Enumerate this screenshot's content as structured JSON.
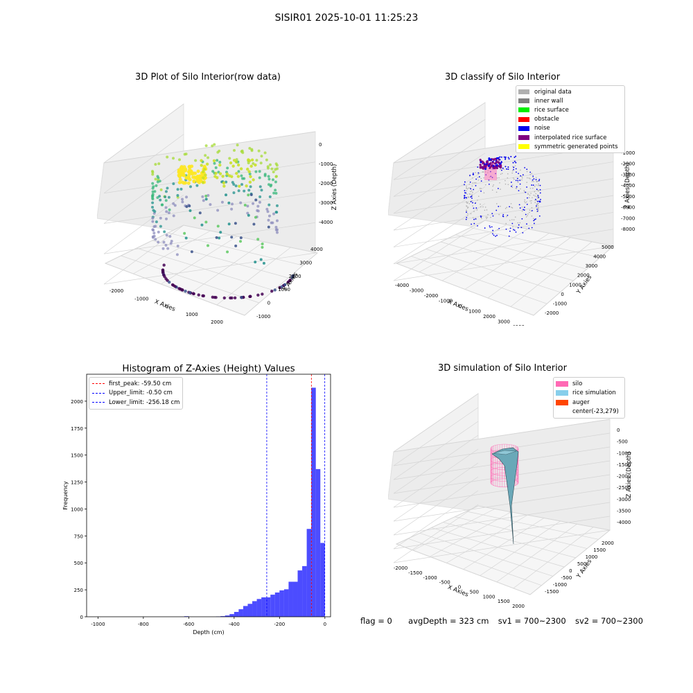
{
  "suptitle": "SISIR01 2025-10-01 11:25:23",
  "panels": {
    "raw": {
      "title": "3D Plot of Silo Interior(row data)",
      "xlabel": "X Axies",
      "ylabel": "Y Axies",
      "zlabel": "Z Axies (Depth)",
      "xticks": [
        "-2000",
        "-1000",
        "0",
        "1000",
        "2000"
      ],
      "yticks": [
        "-1000",
        "0",
        "1000",
        "2000",
        "3000",
        "4000"
      ],
      "zticks": [
        "0",
        "-1000",
        "-2000",
        "-3000",
        "-4000"
      ]
    },
    "classify": {
      "title": "3D classify of Silo Interior",
      "xlabel": "X Axies",
      "ylabel": "Y Axies",
      "zlabel": "Z Axies (Depth)",
      "xticks": [
        "-4000",
        "-3000",
        "-2000",
        "-1000",
        "0",
        "1000",
        "2000",
        "3000",
        "4000"
      ],
      "yticks": [
        "-2000",
        "-1000",
        "0",
        "1000",
        "2000",
        "3000",
        "4000",
        "5000"
      ],
      "zticks": [
        "-1000",
        "-2000",
        "-3000",
        "-4000",
        "-5000",
        "-6000",
        "-7000",
        "-8000"
      ],
      "legend": [
        {
          "label": "original data",
          "color": "#b0b0b0"
        },
        {
          "label": "inner wall",
          "color": "#808080"
        },
        {
          "label": "rice surface",
          "color": "#00ee00"
        },
        {
          "label": "obstacle",
          "color": "#ff0000"
        },
        {
          "label": "noise",
          "color": "#0000ee"
        },
        {
          "label": "interpolated rice surface",
          "color": "#800080"
        },
        {
          "label": "symmetric generated points",
          "color": "#ffff00"
        }
      ]
    },
    "simulation": {
      "title": "3D simulation of Silo Interior",
      "xlabel": "X Axies",
      "ylabel": "Y Axies",
      "zlabel": "Z Axies (Depth)",
      "xticks": [
        "-2000",
        "-1500",
        "-1000",
        "-500",
        "0",
        "500",
        "1000",
        "1500",
        "2000"
      ],
      "yticks": [
        "-1500",
        "-1000",
        "-500",
        "0",
        "500",
        "1000",
        "1500",
        "2000"
      ],
      "zticks": [
        "0",
        "-500",
        "-1000",
        "-1500",
        "-2000",
        "-2500",
        "-3000",
        "-3500",
        "-4000"
      ],
      "legend": [
        {
          "label": "silo",
          "color": "#ff69b4"
        },
        {
          "label": "rice simulation",
          "color": "#87ceeb"
        },
        {
          "label": "auger",
          "color": "#ff4500"
        },
        {
          "label": "center(-23,279)",
          "color": ""
        }
      ]
    }
  },
  "status": {
    "flag": "flag = 0",
    "avg_depth": "avgDepth = 323 cm",
    "sv1": "sv1 = 700~2300",
    "sv2": "sv2 = 700~2300"
  },
  "chart_data": {
    "type": "bar",
    "title": "Histogram of Z-Axies (Height) Values",
    "xlabel": "Depth (cm)",
    "ylabel": "Frequency",
    "xlim": [
      -1050,
      25
    ],
    "ylim": [
      0,
      2250
    ],
    "xticks": [
      -1000,
      -800,
      -600,
      -400,
      -200,
      0
    ],
    "yticks": [
      0,
      250,
      500,
      750,
      1000,
      1250,
      1500,
      1750,
      2000
    ],
    "bar_color": "#0000ff",
    "bin_width": 20,
    "bins": [
      {
        "x": -620,
        "value": 5
      },
      {
        "x": -480,
        "value": 3
      },
      {
        "x": -460,
        "value": 6
      },
      {
        "x": -440,
        "value": 12
      },
      {
        "x": -420,
        "value": 25
      },
      {
        "x": -400,
        "value": 45
      },
      {
        "x": -380,
        "value": 70
      },
      {
        "x": -360,
        "value": 100
      },
      {
        "x": -340,
        "value": 120
      },
      {
        "x": -320,
        "value": 145
      },
      {
        "x": -300,
        "value": 165
      },
      {
        "x": -280,
        "value": 180
      },
      {
        "x": -260,
        "value": 180
      },
      {
        "x": -240,
        "value": 205
      },
      {
        "x": -220,
        "value": 225
      },
      {
        "x": -200,
        "value": 245
      },
      {
        "x": -180,
        "value": 255
      },
      {
        "x": -160,
        "value": 325
      },
      {
        "x": -140,
        "value": 325
      },
      {
        "x": -120,
        "value": 430
      },
      {
        "x": -100,
        "value": 470
      },
      {
        "x": -80,
        "value": 815
      },
      {
        "x": -60,
        "value": 2125
      },
      {
        "x": -40,
        "value": 1370
      },
      {
        "x": -20,
        "value": 685
      }
    ],
    "lines": [
      {
        "label": "first_peak: -59.50 cm",
        "x": -59.5,
        "color": "#ff0000"
      },
      {
        "label": "Upper_limit: -0.50 cm",
        "x": -0.5,
        "color": "#0000ff"
      },
      {
        "label": "Lower_limit: -256.18 cm",
        "x": -256.18,
        "color": "#0000ff"
      }
    ]
  }
}
